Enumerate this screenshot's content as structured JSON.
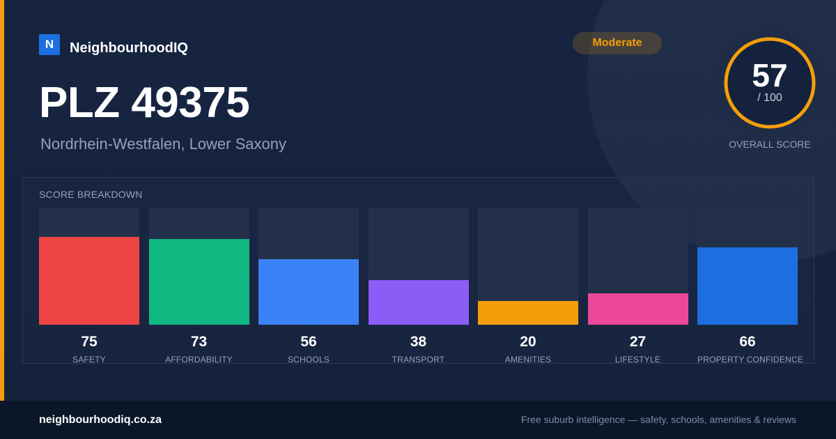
{
  "brand": {
    "logo_letter": "N",
    "name": "NeighbourhoodIQ"
  },
  "page": {
    "title": "PLZ 49375",
    "subtitle": "Nordrhein-Westfalen, Lower Saxony"
  },
  "badge": {
    "label": "Moderate",
    "color": "#f59e0b"
  },
  "score": {
    "value": "57",
    "max_label": "/ 100",
    "caption": "OVERALL SCORE",
    "fraction": 0.57,
    "ring_color": "#f59e0b"
  },
  "breakdown": {
    "title": "SCORE BREAKDOWN",
    "items": [
      {
        "label": "SAFETY",
        "value": "75",
        "score": 75,
        "color": "#ef4444"
      },
      {
        "label": "AFFORDABILITY",
        "value": "73",
        "score": 73,
        "color": "#10b981"
      },
      {
        "label": "SCHOOLS",
        "value": "56",
        "score": 56,
        "color": "#3b82f6"
      },
      {
        "label": "TRANSPORT",
        "value": "38",
        "score": 38,
        "color": "#8b5cf6"
      },
      {
        "label": "AMENITIES",
        "value": "20",
        "score": 20,
        "color": "#f59e0b"
      },
      {
        "label": "LIFESTYLE",
        "value": "27",
        "score": 27,
        "color": "#ec4899"
      },
      {
        "label": "PROPERTY CONFIDENCE",
        "value": "66",
        "score": 66,
        "color": "#1d6fe0"
      }
    ]
  },
  "footer": {
    "domain": "neighbourhoodiq.co.za",
    "tagline": "Free suburb intelligence — safety, schools, amenities & reviews"
  }
}
